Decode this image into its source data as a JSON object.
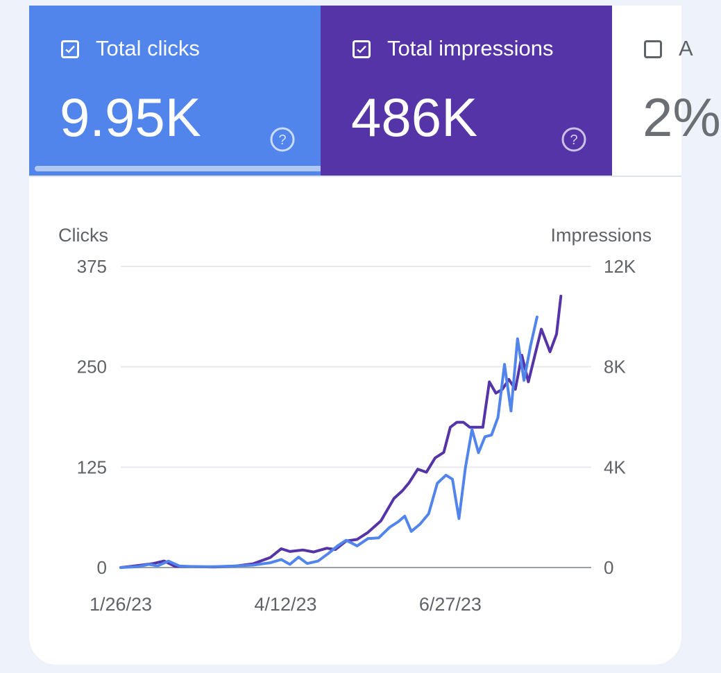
{
  "metrics": [
    {
      "label": "Total clicks",
      "value": "9.95K",
      "checked": true,
      "color": "#5285ec"
    },
    {
      "label": "Total impressions",
      "value": "486K",
      "checked": true,
      "color": "#5534a8"
    },
    {
      "label": "A",
      "value": "2%",
      "checked": false
    }
  ],
  "icons": {
    "checkbox": "checkbox-icon",
    "help": "help-circle-icon"
  },
  "chart_data": {
    "type": "line",
    "left_axis_title": "Clicks",
    "right_axis_title": "Impressions",
    "y_left": {
      "ticks": [
        0,
        125,
        250,
        375
      ],
      "tick_labels": [
        "0",
        "125",
        "250",
        "375"
      ],
      "range": [
        0,
        375
      ]
    },
    "y_right": {
      "ticks": [
        0,
        4000,
        8000,
        12000
      ],
      "tick_labels": [
        "0",
        "4K",
        "8K",
        "12K"
      ],
      "range": [
        0,
        12000
      ]
    },
    "x_range": [
      "2023-01-26",
      "2023-08-31"
    ],
    "x_ticks": [
      {
        "date": "2023-01-26",
        "label": "1/26/23"
      },
      {
        "date": "2023-04-12",
        "label": "4/12/23"
      },
      {
        "date": "2023-06-27",
        "label": "6/27/23"
      }
    ],
    "grid": true,
    "series": [
      {
        "name": "Total impressions",
        "axis": "right",
        "color": "#5534a8",
        "points": [
          [
            "2023-01-26",
            0
          ],
          [
            "2023-02-03",
            80
          ],
          [
            "2023-02-10",
            160
          ],
          [
            "2023-02-15",
            260
          ],
          [
            "2023-02-20",
            50
          ],
          [
            "2023-03-01",
            40
          ],
          [
            "2023-03-10",
            20
          ],
          [
            "2023-03-20",
            60
          ],
          [
            "2023-03-28",
            150
          ],
          [
            "2023-04-05",
            400
          ],
          [
            "2023-04-10",
            750
          ],
          [
            "2023-04-14",
            640
          ],
          [
            "2023-04-20",
            700
          ],
          [
            "2023-04-25",
            620
          ],
          [
            "2023-05-01",
            770
          ],
          [
            "2023-05-05",
            720
          ],
          [
            "2023-05-10",
            1060
          ],
          [
            "2023-05-15",
            1120
          ],
          [
            "2023-05-20",
            1400
          ],
          [
            "2023-05-26",
            1860
          ],
          [
            "2023-06-01",
            2750
          ],
          [
            "2023-06-05",
            3070
          ],
          [
            "2023-06-08",
            3380
          ],
          [
            "2023-06-12",
            3920
          ],
          [
            "2023-06-16",
            3800
          ],
          [
            "2023-06-20",
            4370
          ],
          [
            "2023-06-24",
            4590
          ],
          [
            "2023-06-27",
            5590
          ],
          [
            "2023-06-30",
            5790
          ],
          [
            "2023-07-03",
            5790
          ],
          [
            "2023-07-06",
            5590
          ],
          [
            "2023-07-09",
            5590
          ],
          [
            "2023-07-12",
            5590
          ],
          [
            "2023-07-15",
            7400
          ],
          [
            "2023-07-18",
            6950
          ],
          [
            "2023-07-21",
            7100
          ],
          [
            "2023-07-24",
            7500
          ],
          [
            "2023-07-27",
            7100
          ],
          [
            "2023-07-30",
            8460
          ],
          [
            "2023-08-02",
            7400
          ],
          [
            "2023-08-05",
            8460
          ],
          [
            "2023-08-08",
            9500
          ],
          [
            "2023-08-12",
            8600
          ],
          [
            "2023-08-15",
            9300
          ],
          [
            "2023-08-17",
            10820
          ]
        ]
      },
      {
        "name": "Total clicks",
        "axis": "left",
        "color": "#5285ec",
        "points": [
          [
            "2023-01-26",
            0
          ],
          [
            "2023-02-03",
            1
          ],
          [
            "2023-02-08",
            4
          ],
          [
            "2023-02-12",
            2
          ],
          [
            "2023-02-17",
            8
          ],
          [
            "2023-02-22",
            2
          ],
          [
            "2023-03-01",
            1
          ],
          [
            "2023-03-10",
            1
          ],
          [
            "2023-03-20",
            2
          ],
          [
            "2023-03-28",
            3
          ],
          [
            "2023-04-05",
            6
          ],
          [
            "2023-04-10",
            10
          ],
          [
            "2023-04-14",
            4
          ],
          [
            "2023-04-18",
            13
          ],
          [
            "2023-04-22",
            5
          ],
          [
            "2023-04-27",
            8
          ],
          [
            "2023-05-02",
            18
          ],
          [
            "2023-05-06",
            27
          ],
          [
            "2023-05-10",
            34
          ],
          [
            "2023-05-15",
            27
          ],
          [
            "2023-05-20",
            36
          ],
          [
            "2023-05-25",
            37
          ],
          [
            "2023-05-30",
            50
          ],
          [
            "2023-06-03",
            57
          ],
          [
            "2023-06-06",
            64
          ],
          [
            "2023-06-09",
            45
          ],
          [
            "2023-06-13",
            54
          ],
          [
            "2023-06-17",
            67
          ],
          [
            "2023-06-21",
            105
          ],
          [
            "2023-06-25",
            115
          ],
          [
            "2023-06-28",
            110
          ],
          [
            "2023-07-01",
            61
          ],
          [
            "2023-07-04",
            125
          ],
          [
            "2023-07-07",
            172
          ],
          [
            "2023-07-10",
            143
          ],
          [
            "2023-07-13",
            163
          ],
          [
            "2023-07-16",
            165
          ],
          [
            "2023-07-19",
            187
          ],
          [
            "2023-07-22",
            253
          ],
          [
            "2023-07-25",
            195
          ],
          [
            "2023-07-28",
            285
          ],
          [
            "2023-07-31",
            233
          ],
          [
            "2023-08-03",
            276
          ],
          [
            "2023-08-06",
            312
          ]
        ]
      }
    ]
  }
}
